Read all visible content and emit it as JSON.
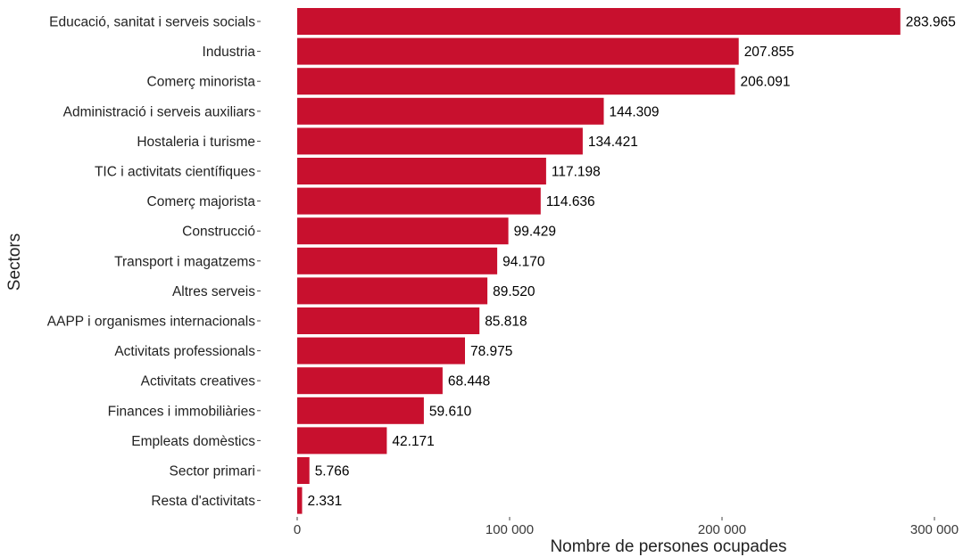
{
  "chart_data": {
    "type": "bar",
    "orientation": "horizontal",
    "xlabel": "Nombre de persones ocupades",
    "ylabel": "Sectors",
    "xlim": [
      0,
      300000
    ],
    "x_ticks": [
      0,
      100000,
      200000,
      300000
    ],
    "x_tick_labels": [
      "0",
      "100 000",
      "200 000",
      "300 000"
    ],
    "grid": false,
    "legend": "none",
    "bar_color": "#c8102e",
    "categories": [
      "Educació, sanitat i serveis socials",
      "Industria",
      "Comerç minorista",
      "Administració i serveis auxiliars",
      "Hostaleria i turisme",
      "TIC i activitats científiques",
      "Comerç majorista",
      "Construcció",
      "Transport i magatzems",
      "Altres serveis",
      "AAPP i organismes internacionals",
      "Activitats professionals",
      "Activitats creatives",
      "Finances i immobiliàries",
      "Empleats domèstics",
      "Sector primari",
      "Resta d'activitats"
    ],
    "values": [
      283965,
      207855,
      206091,
      144309,
      134421,
      117198,
      114636,
      99429,
      94170,
      89520,
      85818,
      78975,
      68448,
      59610,
      42171,
      5766,
      2331
    ],
    "value_labels": [
      "283.965",
      "207.855",
      "206.091",
      "144.309",
      "134.421",
      "117.198",
      "114.636",
      "99.429",
      "94.170",
      "89.520",
      "85.818",
      "78.975",
      "68.448",
      "59.610",
      "42.171",
      "5.766",
      "2.331"
    ]
  }
}
